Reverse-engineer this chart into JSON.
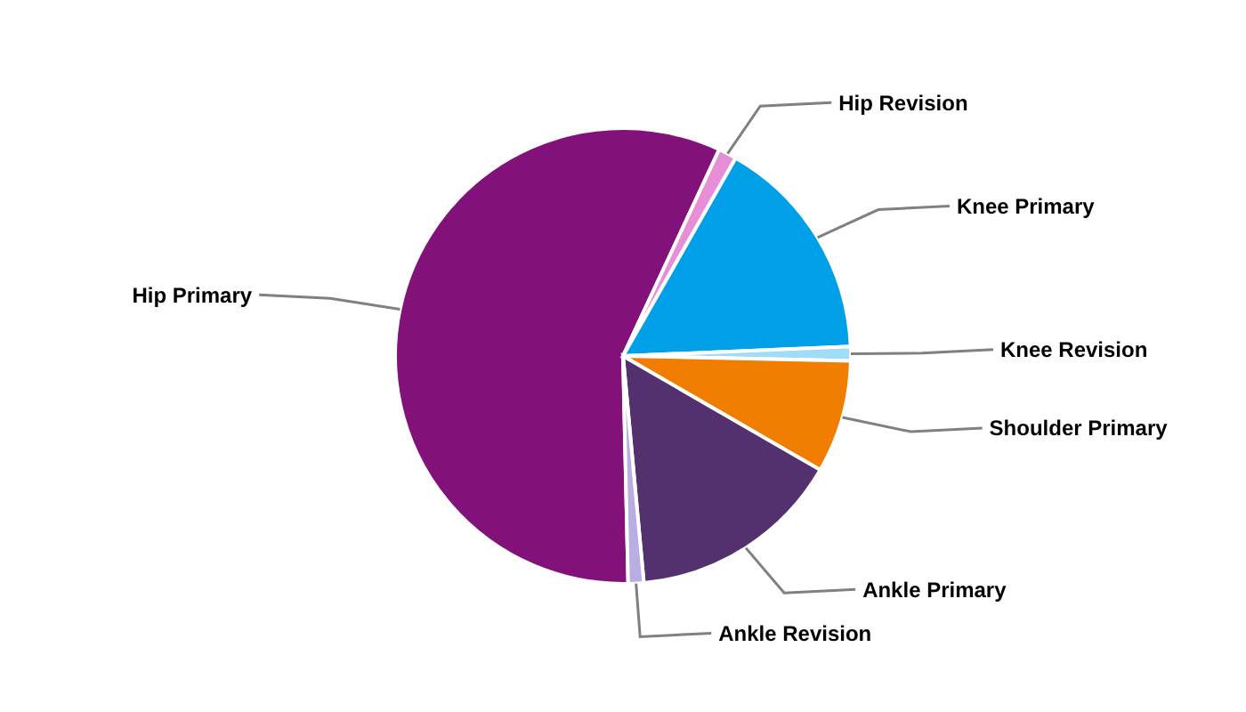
{
  "chart_data": {
    "type": "pie",
    "categories": [
      "Hip Primary",
      "Hip Revision",
      "Knee Primary",
      "Knee Revision",
      "Shoulder Primary",
      "Ankle Primary",
      "Ankle Revision"
    ],
    "values": [
      57.3,
      1.3,
      16.1,
      1.0,
      8.0,
      15.2,
      1.1
    ],
    "colors": [
      "#83117a",
      "#e78fd6",
      "#00a0e9",
      "#9fdcf5",
      "#f07c00",
      "#55306e",
      "#b9aee2"
    ]
  }
}
